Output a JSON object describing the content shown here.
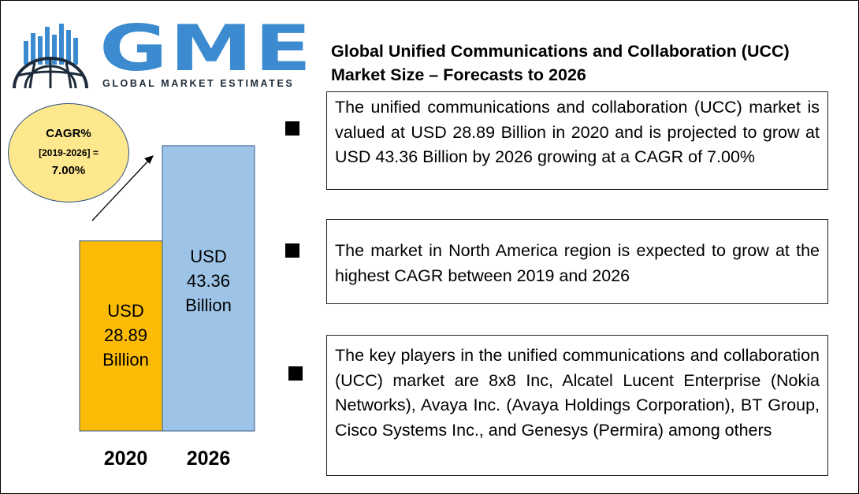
{
  "logo": {
    "letters": "GME",
    "tagline": "GLOBAL MARKET ESTIMATES",
    "icon": "globe-skyline-icon"
  },
  "title_line1": "Global Unified Communications and Collaboration (UCC)",
  "title_line2": "Market Size – Forecasts to 2026",
  "cagr": {
    "line1": "CAGR%",
    "line2": "[2019-2026] =",
    "line3": "7.00%"
  },
  "points": [
    "The unified communications and collaboration (UCC) market is valued at USD 28.89 Billion in 2020 and is projected to grow at USD 43.36 Billion by 2026 growing at a CAGR of 7.00%",
    "The market in North America region is expected to grow at the highest CAGR between 2019 and 2026",
    "The key players in the unified communications and collaboration (UCC) market are  8x8 Inc, Alcatel Lucent Enterprise (Nokia Networks), Avaya Inc. (Avaya Holdings Corporation), BT Group, Cisco Systems Inc., and Genesys (Permira) among others"
  ],
  "colors": {
    "bar_2020": "#fbbb06",
    "bar_2026": "#9dc3e6",
    "logo_blue": "#3c8bd0",
    "bubble": "#fde88d"
  },
  "chart_data": {
    "type": "bar",
    "categories": [
      "2020",
      "2026"
    ],
    "values": [
      28.89,
      43.36
    ],
    "value_labels": [
      [
        "USD",
        "28.89",
        "Billion"
      ],
      [
        "USD",
        "43.36",
        "Billion"
      ]
    ],
    "unit": "USD Billion",
    "ylim": [
      0,
      48.5
    ],
    "grid": false,
    "legend": "none"
  }
}
